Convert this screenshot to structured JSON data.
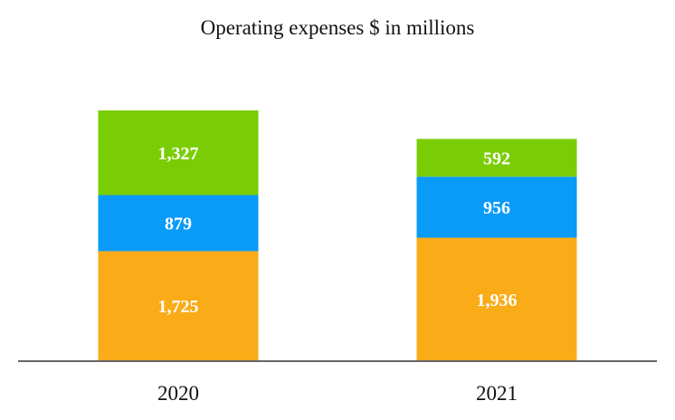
{
  "chart_data": {
    "type": "bar",
    "stacked": true,
    "title": "Operating expenses $ in millions",
    "categories": [
      "2020",
      "2021"
    ],
    "series": [
      {
        "name": "Bottom segment",
        "color": "#F9AB18",
        "values": [
          1725,
          1936
        ],
        "labels": [
          "1,725",
          "1,936"
        ]
      },
      {
        "name": "Middle segment",
        "color": "#0A9AF7",
        "values": [
          879,
          956
        ],
        "labels": [
          "879",
          "956"
        ]
      },
      {
        "name": "Top segment",
        "color": "#7ACD05",
        "values": [
          1327,
          592
        ],
        "labels": [
          "1,327",
          "592"
        ]
      }
    ],
    "xlabel": "",
    "ylabel": "",
    "ylim": [
      0,
      3931
    ],
    "grid": false,
    "legend": "none",
    "axis_color": "#666666"
  }
}
